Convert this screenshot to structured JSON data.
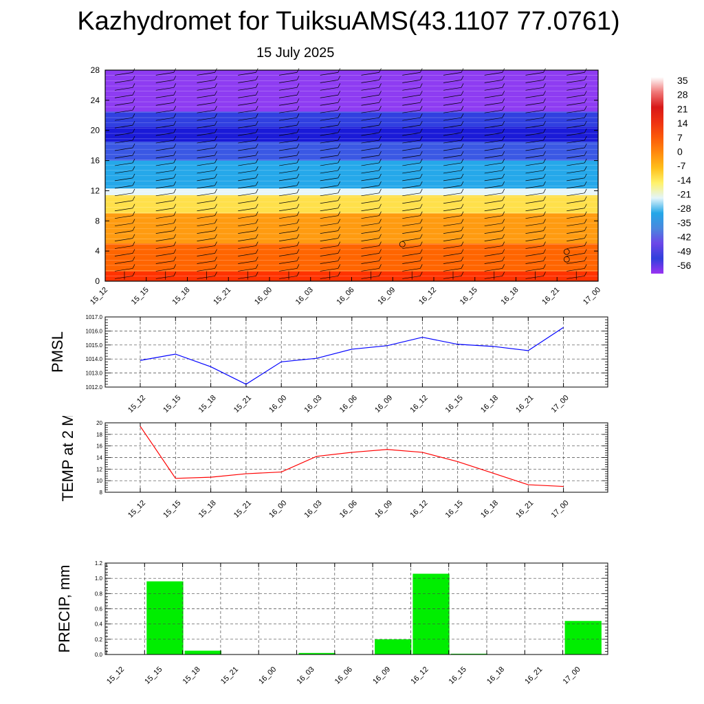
{
  "title": "Kazhydromet for TuiksuAMS(43.1107 77.0761)",
  "subtitle": "15 July 2025",
  "chart_data": [
    {
      "type": "heatmap",
      "name": "vertical cross-section (filled contours with wind barbs)",
      "x": [
        "15_12",
        "15_15",
        "15_18",
        "15_21",
        "16_00",
        "16_03",
        "16_06",
        "16_09",
        "16_12",
        "16_15",
        "16_18",
        "16_21",
        "17_00"
      ],
      "yticks": [
        0,
        4,
        8,
        12,
        16,
        20,
        24,
        28
      ],
      "ylim": [
        0,
        28
      ],
      "colorbar_labels": [
        "35",
        "28",
        "21",
        "14",
        "7",
        "0",
        "-7",
        "-14",
        "-21",
        "-28",
        "-35",
        "-42",
        "-49",
        "-56"
      ],
      "colorbar_colors": [
        "#ffffff",
        "#f07878",
        "#d81818",
        "#ee3212",
        "#fb5a0a",
        "#ff8a0e",
        "#ffbf1a",
        "#fff26a",
        "#e3f5fb",
        "#23a7e8",
        "#4a88de",
        "#6c46e8",
        "#3040dc",
        "#9a32f2"
      ],
      "bands": [
        {
          "from": 0,
          "to": 1.3,
          "color": "#ff3300"
        },
        {
          "from": 1.3,
          "to": 5,
          "color": "#ff6500"
        },
        {
          "from": 5,
          "to": 9,
          "color": "#ff9b10"
        },
        {
          "from": 9,
          "to": 11.4,
          "color": "#ffe04a"
        },
        {
          "from": 11.4,
          "to": 12.3,
          "color": "#e8f6fa"
        },
        {
          "from": 12.3,
          "to": 16,
          "color": "#25a8ea"
        },
        {
          "from": 16,
          "to": 18.5,
          "color": "#3a58e4"
        },
        {
          "from": 18.5,
          "to": 20.5,
          "color": "#1a1ad8"
        },
        {
          "from": 20.5,
          "to": 22.5,
          "color": "#3040e0"
        },
        {
          "from": 22.5,
          "to": 28,
          "color": "#8e3cf2"
        }
      ]
    },
    {
      "type": "line",
      "ylabel": "PMSL",
      "x": [
        "15_12",
        "15_15",
        "15_18",
        "15_21",
        "16_00",
        "16_03",
        "16_06",
        "16_09",
        "16_12",
        "16_15",
        "16_18",
        "16_21",
        "17_00"
      ],
      "values": [
        1013.9,
        1014.35,
        1013.45,
        1012.2,
        1013.8,
        1014.05,
        1014.7,
        1014.95,
        1015.55,
        1015.05,
        1014.9,
        1014.6,
        1016.25
      ],
      "ylim": [
        1012.0,
        1017.0
      ],
      "yticks": [
        "1012.0",
        "1013.0",
        "1014.0",
        "1015.0",
        "1016.0",
        "1017.0"
      ],
      "color": "#0000ff",
      "grid": true
    },
    {
      "type": "line",
      "ylabel": "TEMP at 2 M",
      "x": [
        "15_12",
        "15_15",
        "15_18",
        "15_21",
        "16_00",
        "16_03",
        "16_06",
        "16_09",
        "16_12",
        "16_15",
        "16_18",
        "16_21",
        "17_00"
      ],
      "values": [
        19.4,
        10.4,
        10.6,
        11.2,
        11.5,
        14.2,
        14.9,
        15.4,
        14.9,
        13.3,
        11.3,
        9.3,
        9.0
      ],
      "ylim": [
        8,
        20
      ],
      "yticks": [
        "8",
        "10",
        "12",
        "14",
        "16",
        "18",
        "20"
      ],
      "color": "#ff0000",
      "grid": true
    },
    {
      "type": "bar",
      "ylabel": "PRECIP, mm",
      "categories": [
        "15_12",
        "15_15",
        "15_18",
        "15_21",
        "16_00",
        "16_03",
        "16_06",
        "16_09",
        "16_12",
        "16_15",
        "16_18",
        "16_21",
        "17_00"
      ],
      "values": [
        0,
        0.96,
        0.05,
        0,
        0,
        0.02,
        0,
        0.2,
        1.06,
        0.01,
        0,
        0,
        0.44
      ],
      "ylim": [
        0,
        1.2
      ],
      "yticks": [
        "0.0",
        "0.2",
        "0.4",
        "0.6",
        "0.8",
        "1.0",
        "1.2"
      ],
      "color": "#00ee00",
      "grid": true
    }
  ]
}
